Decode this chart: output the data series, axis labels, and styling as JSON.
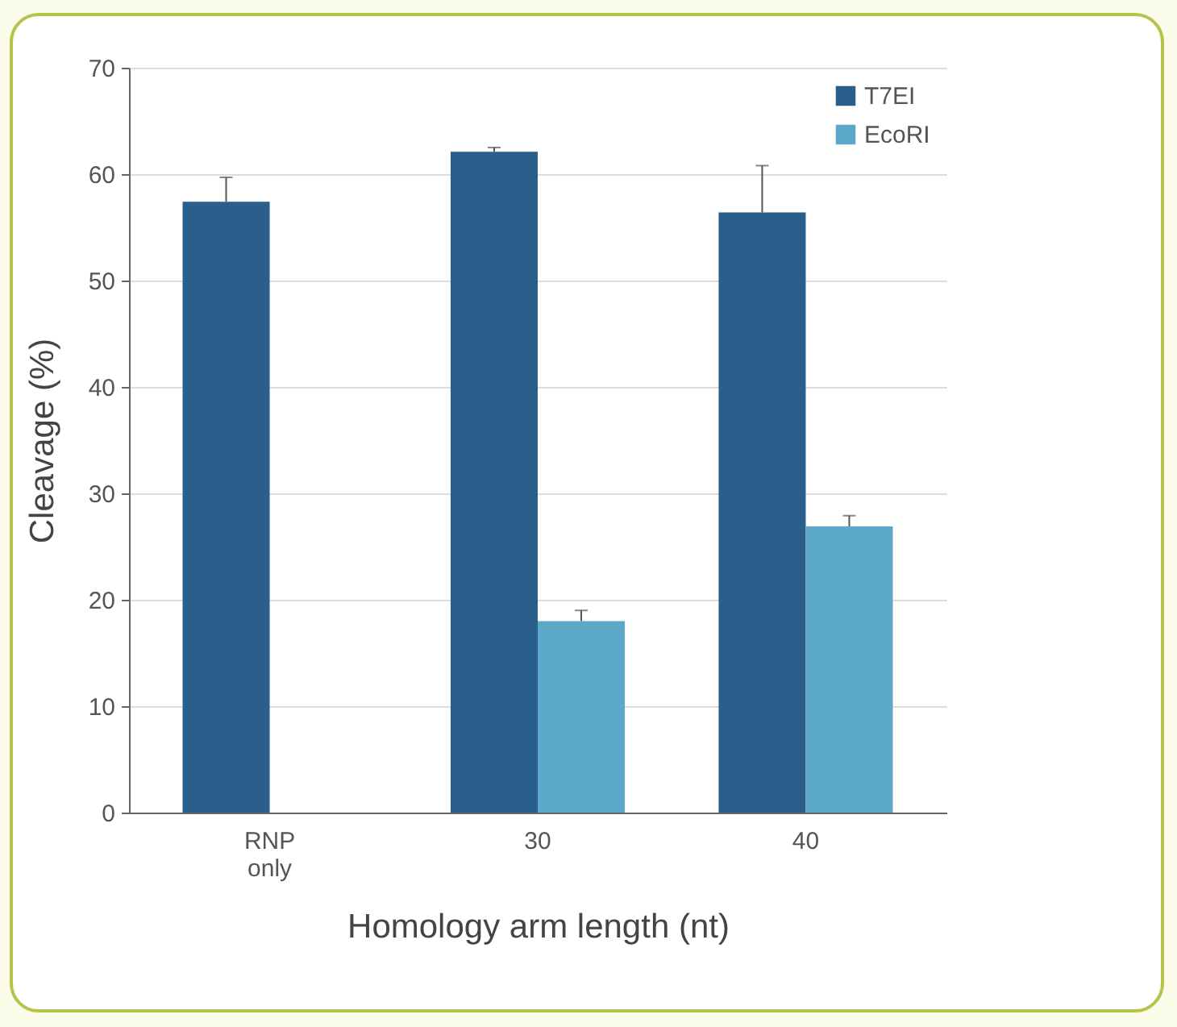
{
  "chart_data": {
    "type": "bar",
    "xlabel": "Homology arm length (nt)",
    "ylabel": "Cleavage (%)",
    "categories": [
      "RNP only",
      "30",
      "40"
    ],
    "series": [
      {
        "name": "T7EI",
        "color": "#2a5f8c",
        "values": [
          57.4,
          62.1,
          56.4
        ],
        "errors": [
          [
            57.4,
            59.7
          ],
          [
            62.1,
            62.5
          ],
          [
            56.4,
            60.8
          ]
        ]
      },
      {
        "name": "EcoRI",
        "color": "#5ba8c8",
        "values": [
          null,
          18.0,
          26.9
        ],
        "errors": [
          null,
          [
            18.0,
            19.0
          ],
          [
            26.9,
            27.9
          ]
        ]
      }
    ],
    "ylim": [
      0,
      70
    ],
    "yticks": [
      0,
      10,
      20,
      30,
      40,
      50,
      60,
      70
    ],
    "grid": "y",
    "legend": "top right"
  }
}
